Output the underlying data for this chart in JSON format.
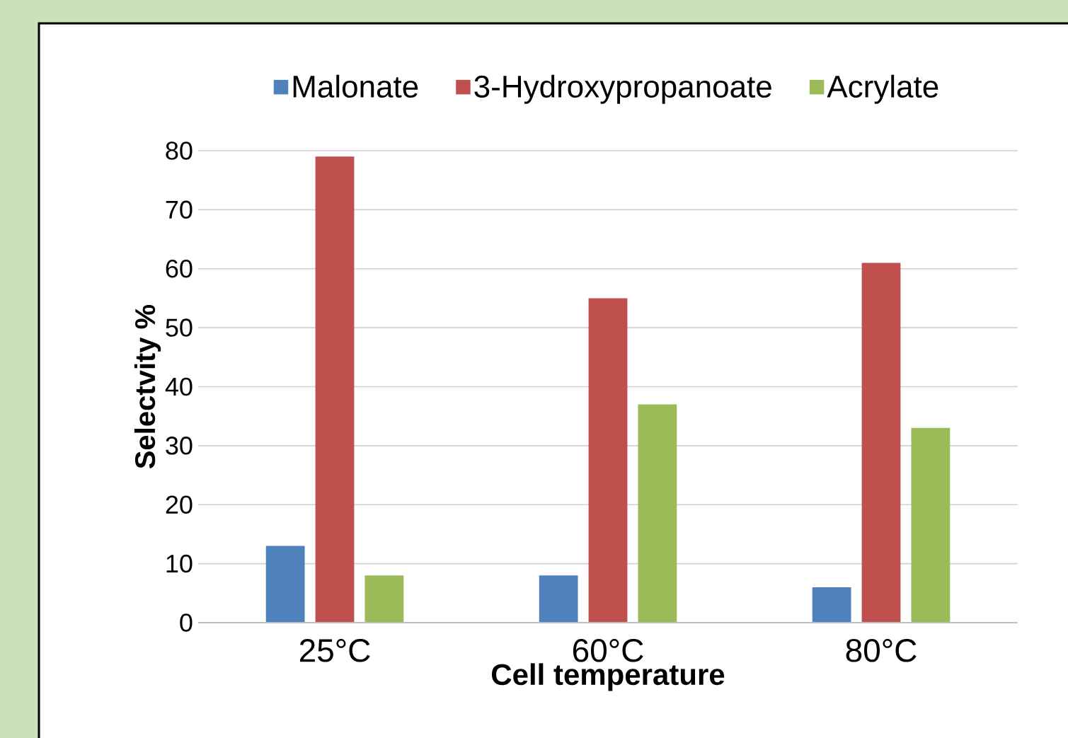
{
  "chart_data": {
    "type": "bar",
    "categories": [
      "25°C",
      "60°C",
      "80°C"
    ],
    "series": [
      {
        "name": "Malonate",
        "color": "#4f81bd",
        "values": [
          13,
          8,
          6
        ]
      },
      {
        "name": "3-Hydroxypropanoate",
        "color": "#c0504d",
        "values": [
          79,
          55,
          61
        ]
      },
      {
        "name": "Acrylate",
        "color": "#9bbb59",
        "values": [
          8,
          37,
          33
        ]
      }
    ],
    "xlabel": "Cell temperature",
    "ylabel": "Selectvity %",
    "ylim": [
      0,
      80
    ],
    "yticks": [
      0,
      10,
      20,
      30,
      40,
      50,
      60,
      70,
      80
    ],
    "grid": "y",
    "legend": "top"
  }
}
